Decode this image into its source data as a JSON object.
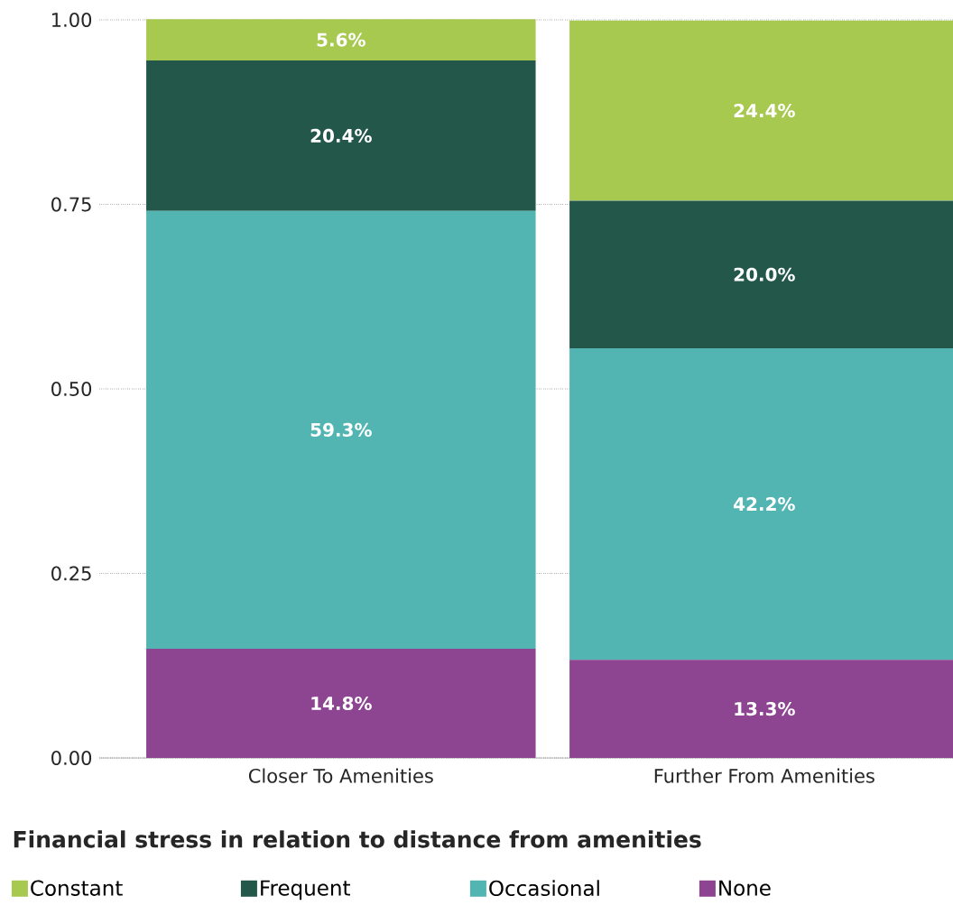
{
  "chart_data": {
    "type": "bar",
    "stacked": true,
    "categories": [
      "Closer To Amenities",
      "Further From Amenities"
    ],
    "series": [
      {
        "name": "None",
        "color": "#8e4591",
        "values": [
          0.148,
          0.133
        ],
        "value_labels": [
          "14.8%",
          "13.3%"
        ]
      },
      {
        "name": "Occasional",
        "color": "#52b5b2",
        "values": [
          0.593,
          0.422
        ],
        "value_labels": [
          "59.3%",
          "42.2%"
        ]
      },
      {
        "name": "Frequent",
        "color": "#23574a",
        "values": [
          0.204,
          0.2
        ],
        "value_labels": [
          "20.4%",
          "20.0%"
        ]
      },
      {
        "name": "Constant",
        "color": "#a8c94f",
        "values": [
          0.056,
          0.244
        ],
        "value_labels": [
          "5.6%",
          "24.4%"
        ]
      }
    ],
    "ylim": [
      0,
      1
    ],
    "yticks": [
      {
        "value": 0,
        "label": "0.00"
      },
      {
        "value": 0.25,
        "label": "0.25"
      },
      {
        "value": 0.5,
        "label": "0.50"
      },
      {
        "value": 0.75,
        "label": "0.75"
      },
      {
        "value": 1,
        "label": "1.00"
      }
    ],
    "grid": "y",
    "legend": "bottom",
    "legend_title": "Financial stress in relation to distance from amenities"
  }
}
